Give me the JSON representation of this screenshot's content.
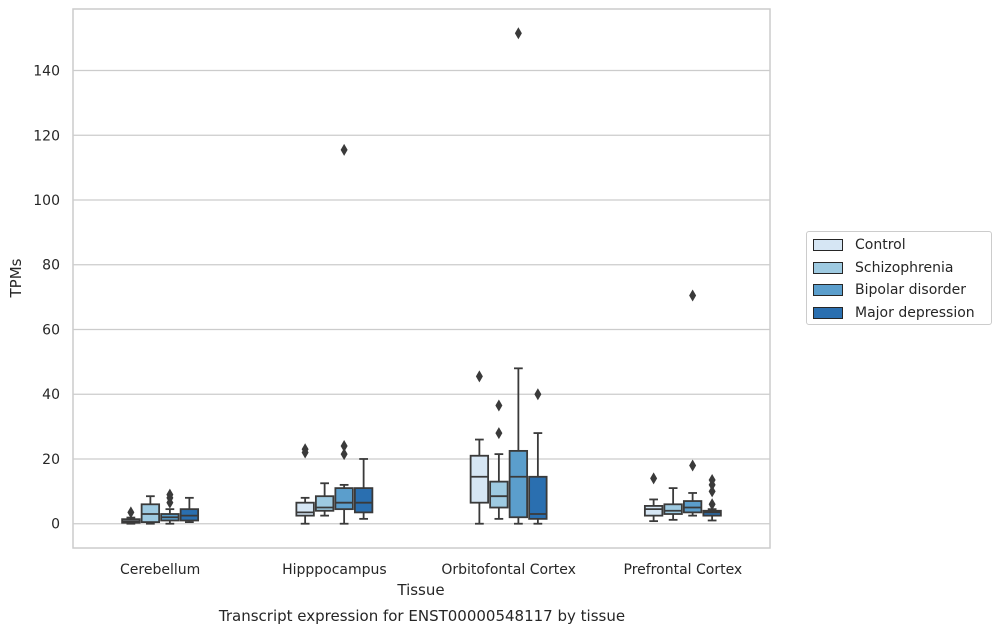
{
  "caption": "Transcript expression for ENST00000548117 by tissue",
  "chart_data": {
    "type": "box",
    "xlabel": "Tissue",
    "ylabel": "TPMs",
    "ylim": [
      -7.5,
      159
    ],
    "yticks": [
      0,
      20,
      40,
      60,
      80,
      100,
      120,
      140
    ],
    "grid": "horizontal",
    "legend_position": "right",
    "categories": [
      "Cerebellum",
      "Hipppocampus",
      "Orbitofontal Cortex",
      "Prefrontal Cortex"
    ],
    "series": [
      {
        "name": "Control",
        "color": "#d6e6f4",
        "boxes": [
          {
            "whisker_low": 0,
            "q1": 0.3,
            "median": 0.8,
            "q3": 1.4,
            "whisker_high": 1.9,
            "outliers": [
              3.5
            ]
          },
          {
            "whisker_low": 0,
            "q1": 2.5,
            "median": 3.5,
            "q3": 6.5,
            "whisker_high": 8.0,
            "outliers": [
              22,
              23
            ]
          },
          {
            "whisker_low": 0,
            "q1": 6.5,
            "median": 14.5,
            "q3": 21,
            "whisker_high": 26,
            "outliers": [
              45.5
            ]
          },
          {
            "whisker_low": 0.8,
            "q1": 2.5,
            "median": 4.5,
            "q3": 5.5,
            "whisker_high": 7.5,
            "outliers": [
              14
            ]
          }
        ]
      },
      {
        "name": "Schizophrenia",
        "color": "#9ecae1",
        "boxes": [
          {
            "whisker_low": 0,
            "q1": 0.5,
            "median": 3,
            "q3": 6,
            "whisker_high": 8.5,
            "outliers": []
          },
          {
            "whisker_low": 2.5,
            "q1": 4,
            "median": 5,
            "q3": 8.5,
            "whisker_high": 12.5,
            "outliers": []
          },
          {
            "whisker_low": 1.5,
            "q1": 5,
            "median": 8.5,
            "q3": 13,
            "whisker_high": 21.5,
            "outliers": [
              28,
              36.5
            ]
          },
          {
            "whisker_low": 1.2,
            "q1": 3,
            "median": 4,
            "q3": 6,
            "whisker_high": 11,
            "outliers": []
          }
        ]
      },
      {
        "name": "Bipolar disorder",
        "color": "#5b9ecc",
        "boxes": [
          {
            "whisker_low": 0,
            "q1": 1,
            "median": 2,
            "q3": 3,
            "whisker_high": 4.5,
            "outliers": [
              6.5,
              8,
              9
            ]
          },
          {
            "whisker_low": 0,
            "q1": 4.5,
            "median": 6.5,
            "q3": 11,
            "whisker_high": 12,
            "outliers": [
              21.5,
              24,
              115.5
            ]
          },
          {
            "whisker_low": 0,
            "q1": 2,
            "median": 14.5,
            "q3": 22.5,
            "whisker_high": 48,
            "outliers": [
              151.5
            ]
          },
          {
            "whisker_low": 2.5,
            "q1": 3.5,
            "median": 5,
            "q3": 7,
            "whisker_high": 9.5,
            "outliers": [
              18,
              70.5
            ]
          }
        ]
      },
      {
        "name": "Major depression",
        "color": "#2a6fb0",
        "boxes": [
          {
            "whisker_low": 0.5,
            "q1": 1,
            "median": 2.5,
            "q3": 4.5,
            "whisker_high": 8,
            "outliers": []
          },
          {
            "whisker_low": 1.5,
            "q1": 3.5,
            "median": 6.5,
            "q3": 11,
            "whisker_high": 20,
            "outliers": []
          },
          {
            "whisker_low": 0,
            "q1": 1.5,
            "median": 3,
            "q3": 14.5,
            "whisker_high": 28,
            "outliers": [
              40
            ]
          },
          {
            "whisker_low": 1,
            "q1": 2.5,
            "median": 3.5,
            "q3": 4,
            "whisker_high": 4.5,
            "outliers": [
              6,
              10,
              12,
              13.5
            ]
          }
        ]
      }
    ]
  }
}
